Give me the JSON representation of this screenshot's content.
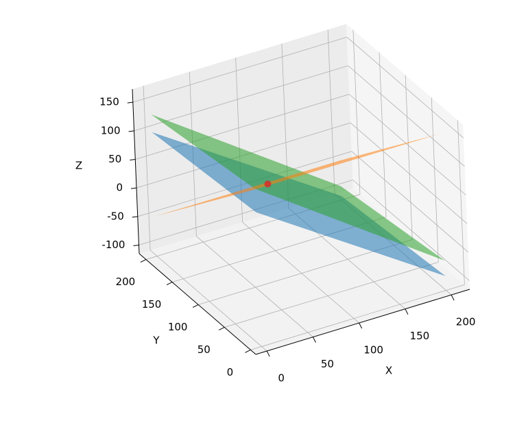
{
  "chart_data": {
    "type": "surface3d",
    "xlabel": "X",
    "ylabel": "Y",
    "zlabel": "Z",
    "xlim": [
      -12,
      220
    ],
    "ylim": [
      -10,
      213
    ],
    "zlim": [
      -115,
      173
    ],
    "xticks": [
      0,
      50,
      100,
      150,
      200
    ],
    "yticks": [
      0,
      50,
      100,
      150,
      200
    ],
    "zticks": [
      -100,
      -50,
      0,
      50,
      100,
      150
    ],
    "grid": true,
    "surfaces": [
      {
        "color": "#1f77b4",
        "x": [
          0,
          200
        ],
        "y": [
          0,
          200
        ],
        "z": [
          [
            120,
            -90
          ],
          [
            102,
            -108
          ]
        ]
      },
      {
        "color": "#2ca02c",
        "x": [
          0,
          200
        ],
        "y": [
          0,
          200
        ],
        "z": [
          [
            161,
            -63
          ],
          [
            133,
            -91
          ]
        ]
      },
      {
        "color": "#ff7f0e",
        "x": [
          0,
          200
        ],
        "y": [
          0,
          200
        ],
        "z": [
          [
            160,
            159
          ],
          [
            -45,
            -46
          ]
        ]
      }
    ],
    "points": [
      {
        "color": "#d62728",
        "x": 30,
        "y": 30,
        "z": 131
      }
    ]
  }
}
